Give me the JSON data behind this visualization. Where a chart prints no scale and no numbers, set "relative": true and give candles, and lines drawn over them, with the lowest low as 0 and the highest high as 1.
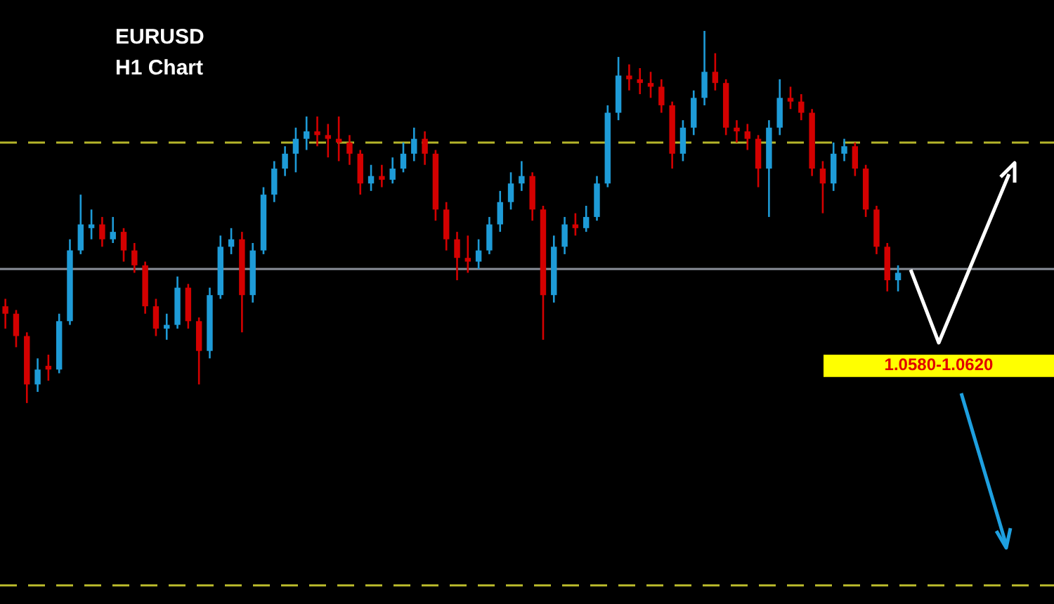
{
  "chart_data": {
    "type": "candlestick",
    "title": "EURUSD",
    "subtitle": "H1 Chart",
    "relative": true,
    "categories": [
      null,
      null,
      null,
      null,
      null,
      null,
      null,
      null,
      null,
      null,
      null,
      null,
      null,
      null,
      null,
      null,
      null,
      null,
      null,
      null,
      null,
      null,
      null,
      null,
      null,
      null,
      null,
      null,
      null,
      null,
      null,
      null,
      null,
      null,
      null,
      null,
      null,
      null,
      null,
      null,
      null,
      null,
      null,
      null,
      null,
      null,
      null,
      null,
      null,
      null,
      null,
      null,
      null,
      null,
      null,
      null,
      null,
      null,
      null,
      null,
      null,
      null,
      null,
      null,
      null,
      null,
      null,
      null,
      null,
      null,
      null,
      null,
      null,
      null,
      null,
      null,
      null,
      null,
      null,
      null,
      null,
      null,
      null,
      null
    ],
    "ohlc": [
      [
        0.26,
        0.28,
        0.2,
        0.24
      ],
      [
        0.24,
        0.25,
        0.15,
        0.18
      ],
      [
        0.18,
        0.19,
        0.0,
        0.05
      ],
      [
        0.05,
        0.12,
        0.03,
        0.09
      ],
      [
        0.1,
        0.13,
        0.06,
        0.09
      ],
      [
        0.09,
        0.24,
        0.08,
        0.22
      ],
      [
        0.22,
        0.44,
        0.21,
        0.41
      ],
      [
        0.41,
        0.56,
        0.4,
        0.48
      ],
      [
        0.47,
        0.52,
        0.44,
        0.48
      ],
      [
        0.48,
        0.5,
        0.42,
        0.44
      ],
      [
        0.44,
        0.5,
        0.43,
        0.46
      ],
      [
        0.46,
        0.47,
        0.38,
        0.41
      ],
      [
        0.41,
        0.43,
        0.35,
        0.37
      ],
      [
        0.37,
        0.38,
        0.24,
        0.26
      ],
      [
        0.26,
        0.28,
        0.18,
        0.2
      ],
      [
        0.2,
        0.24,
        0.17,
        0.21
      ],
      [
        0.21,
        0.34,
        0.2,
        0.31
      ],
      [
        0.31,
        0.32,
        0.2,
        0.22
      ],
      [
        0.22,
        0.23,
        0.05,
        0.14
      ],
      [
        0.14,
        0.31,
        0.12,
        0.29
      ],
      [
        0.29,
        0.45,
        0.28,
        0.42
      ],
      [
        0.42,
        0.47,
        0.4,
        0.44
      ],
      [
        0.44,
        0.46,
        0.19,
        0.29
      ],
      [
        0.29,
        0.43,
        0.27,
        0.41
      ],
      [
        0.41,
        0.58,
        0.4,
        0.56
      ],
      [
        0.56,
        0.65,
        0.54,
        0.63
      ],
      [
        0.63,
        0.69,
        0.61,
        0.67
      ],
      [
        0.67,
        0.74,
        0.62,
        0.71
      ],
      [
        0.71,
        0.77,
        0.68,
        0.73
      ],
      [
        0.73,
        0.77,
        0.69,
        0.72
      ],
      [
        0.72,
        0.75,
        0.66,
        0.71
      ],
      [
        0.71,
        0.77,
        0.65,
        0.7
      ],
      [
        0.7,
        0.72,
        0.64,
        0.67
      ],
      [
        0.67,
        0.68,
        0.56,
        0.59
      ],
      [
        0.59,
        0.64,
        0.57,
        0.61
      ],
      [
        0.61,
        0.64,
        0.58,
        0.6
      ],
      [
        0.6,
        0.66,
        0.59,
        0.63
      ],
      [
        0.63,
        0.7,
        0.62,
        0.67
      ],
      [
        0.67,
        0.74,
        0.65,
        0.71
      ],
      [
        0.71,
        0.73,
        0.64,
        0.67
      ],
      [
        0.67,
        0.68,
        0.49,
        0.52
      ],
      [
        0.52,
        0.54,
        0.41,
        0.44
      ],
      [
        0.44,
        0.46,
        0.33,
        0.39
      ],
      [
        0.39,
        0.45,
        0.35,
        0.38
      ],
      [
        0.38,
        0.44,
        0.36,
        0.41
      ],
      [
        0.41,
        0.5,
        0.4,
        0.48
      ],
      [
        0.48,
        0.57,
        0.46,
        0.54
      ],
      [
        0.54,
        0.62,
        0.52,
        0.59
      ],
      [
        0.59,
        0.65,
        0.57,
        0.61
      ],
      [
        0.61,
        0.62,
        0.49,
        0.52
      ],
      [
        0.52,
        0.53,
        0.17,
        0.29
      ],
      [
        0.29,
        0.45,
        0.27,
        0.42
      ],
      [
        0.42,
        0.5,
        0.4,
        0.48
      ],
      [
        0.48,
        0.51,
        0.45,
        0.47
      ],
      [
        0.47,
        0.53,
        0.46,
        0.5
      ],
      [
        0.5,
        0.61,
        0.49,
        0.59
      ],
      [
        0.59,
        0.8,
        0.58,
        0.78
      ],
      [
        0.78,
        0.93,
        0.76,
        0.88
      ],
      [
        0.88,
        0.91,
        0.84,
        0.87
      ],
      [
        0.87,
        0.9,
        0.83,
        0.86
      ],
      [
        0.86,
        0.89,
        0.82,
        0.85
      ],
      [
        0.85,
        0.87,
        0.78,
        0.8
      ],
      [
        0.8,
        0.81,
        0.63,
        0.67
      ],
      [
        0.67,
        0.76,
        0.65,
        0.74
      ],
      [
        0.74,
        0.84,
        0.72,
        0.82
      ],
      [
        0.82,
        1.0,
        0.8,
        0.89
      ],
      [
        0.89,
        0.94,
        0.84,
        0.86
      ],
      [
        0.86,
        0.87,
        0.72,
        0.74
      ],
      [
        0.74,
        0.76,
        0.7,
        0.73
      ],
      [
        0.73,
        0.75,
        0.68,
        0.71
      ],
      [
        0.71,
        0.72,
        0.58,
        0.63
      ],
      [
        0.63,
        0.76,
        0.5,
        0.74
      ],
      [
        0.74,
        0.87,
        0.72,
        0.82
      ],
      [
        0.82,
        0.85,
        0.79,
        0.81
      ],
      [
        0.81,
        0.83,
        0.76,
        0.78
      ],
      [
        0.78,
        0.79,
        0.61,
        0.63
      ],
      [
        0.63,
        0.65,
        0.51,
        0.59
      ],
      [
        0.59,
        0.7,
        0.57,
        0.67
      ],
      [
        0.67,
        0.71,
        0.65,
        0.69
      ],
      [
        0.69,
        0.7,
        0.61,
        0.63
      ],
      [
        0.63,
        0.64,
        0.5,
        0.52
      ],
      [
        0.52,
        0.53,
        0.4,
        0.42
      ],
      [
        0.42,
        0.43,
        0.3,
        0.33
      ],
      [
        0.33,
        0.37,
        0.3,
        0.35
      ]
    ],
    "colors": [
      "#d40000",
      "#d40000",
      "#d40000",
      "#1e9bd7",
      "#d40000",
      "#1e9bd7",
      "#1e9bd7",
      "#1e9bd7",
      "#1e9bd7",
      "#d40000",
      "#1e9bd7",
      "#d40000",
      "#d40000",
      "#d40000",
      "#d40000",
      "#1e9bd7",
      "#1e9bd7",
      "#d40000",
      "#d40000",
      "#1e9bd7",
      "#1e9bd7",
      "#1e9bd7",
      "#d40000",
      "#1e9bd7",
      "#1e9bd7",
      "#1e9bd7",
      "#1e9bd7",
      "#1e9bd7",
      "#1e9bd7",
      "#d40000",
      "#d40000",
      "#d40000",
      "#d40000",
      "#d40000",
      "#1e9bd7",
      "#d40000",
      "#1e9bd7",
      "#1e9bd7",
      "#1e9bd7",
      "#d40000",
      "#d40000",
      "#d40000",
      "#d40000",
      "#d40000",
      "#1e9bd7",
      "#1e9bd7",
      "#1e9bd7",
      "#1e9bd7",
      "#1e9bd7",
      "#d40000",
      "#d40000",
      "#1e9bd7",
      "#1e9bd7",
      "#d40000",
      "#1e9bd7",
      "#1e9bd7",
      "#1e9bd7",
      "#1e9bd7",
      "#d40000",
      "#d40000",
      "#d40000",
      "#d40000",
      "#d40000",
      "#1e9bd7",
      "#1e9bd7",
      "#1e9bd7",
      "#d40000",
      "#d40000",
      "#d40000",
      "#d40000",
      "#d40000",
      "#1e9bd7",
      "#1e9bd7",
      "#d40000",
      "#d40000",
      "#d40000",
      "#d40000",
      "#1e9bd7",
      "#1e9bd7",
      "#d40000",
      "#d40000",
      "#d40000",
      "#d40000",
      "#1e9bd7"
    ],
    "ref_lines": [
      {
        "axis": "y",
        "value": 0.7,
        "color": "#b5b52a",
        "line_style": "dashed"
      },
      {
        "axis": "y",
        "value": 0.36,
        "color": "#8a8f99",
        "line_style": "solid"
      },
      {
        "axis": "y",
        "value": -0.49,
        "color": "#b5b52a",
        "line_style": "dashed"
      }
    ],
    "bands": [
      {
        "axis": "y",
        "from": 0.07,
        "to": 0.13,
        "label": "1.0580-1.0620",
        "color": "#ffff00"
      }
    ]
  }
}
